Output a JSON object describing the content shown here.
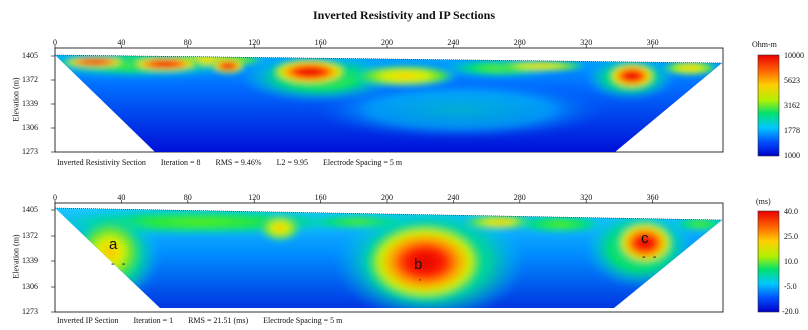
{
  "title": "Inverted Resistivity and IP Sections",
  "x_ticks": [
    "0",
    "40",
    "80",
    "120",
    "160",
    "200",
    "240",
    "280",
    "320",
    "360"
  ],
  "panels": [
    {
      "id": "resistivity",
      "ylabel": "Elevation (m)",
      "y_ticks": [
        "1405",
        "1372",
        "1339",
        "1306",
        "1273"
      ],
      "footer": {
        "section": "Inverted Resistivity Section",
        "iteration": "Iteration = 8",
        "rms": "RMS = 9.46%",
        "l2": "L2 = 9.95",
        "spacing": "Electrode Spacing = 5 m"
      },
      "colorbar": {
        "unit": "Ohm-m",
        "values": [
          "10000",
          "5623",
          "3162",
          "1778",
          "1000"
        ]
      }
    },
    {
      "id": "ip",
      "ylabel": "Elevation (m)",
      "y_ticks": [
        "1405",
        "1372",
        "1339",
        "1306",
        "1273"
      ],
      "footer": {
        "section": "Inverted IP Section",
        "iteration": "Iteration = 1",
        "rms": "RMS = 21.51 (ms)",
        "spacing": "Electrode Spacing = 5 m"
      },
      "colorbar": {
        "unit": "(ms)",
        "values": [
          "40.0",
          "25.0",
          "10.0",
          "-5.0",
          "-20.0"
        ]
      },
      "zones": [
        {
          "label": "a",
          "marks": "- -"
        },
        {
          "label": "b",
          "marks": "·"
        },
        {
          "label": "c",
          "marks": "- -"
        }
      ]
    }
  ],
  "colors": {
    "ramp": [
      "#0000c8",
      "#0050ff",
      "#00c8ff",
      "#00e070",
      "#b0f000",
      "#ffd000",
      "#ff6000",
      "#e80000"
    ]
  }
}
